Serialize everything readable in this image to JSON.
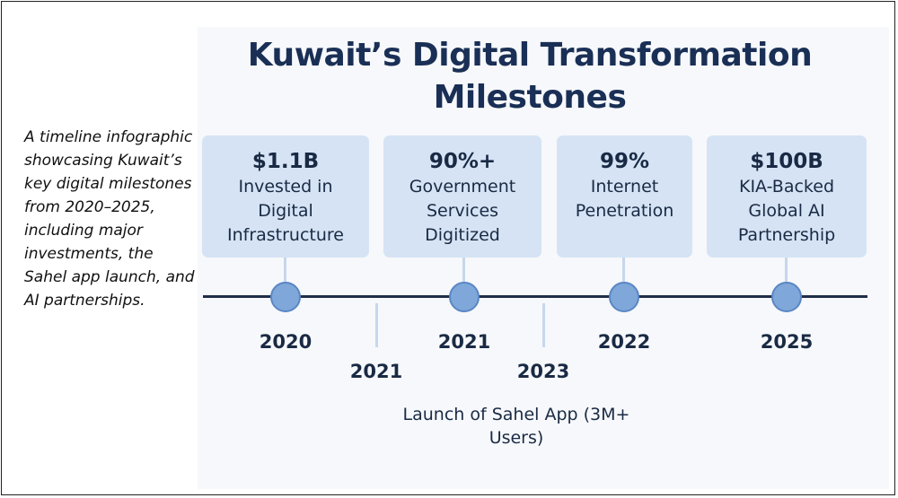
{
  "caption": "A timeline infographic showcasing Kuwait’s key digital milestones from 2020–2025, including major investments, the Sahel app launch, and AI partnerships.",
  "title": "Kuwait’s Digital Transformation Milestones",
  "colors": {
    "title": "#1a2f55",
    "card": "#d5e3f4",
    "axis": "#1f2e4a",
    "dot": "#7fa7d9"
  },
  "milestones": [
    {
      "value": "$1.1B",
      "description": "Invested in Digital Infrastructure",
      "year": "2020"
    },
    {
      "value": "90%+",
      "description": "Government Services Digitized",
      "year": "2021"
    },
    {
      "value": "99%",
      "description": "Internet Penetration",
      "year": "2022"
    },
    {
      "value": "$100B",
      "description": "KIA-Backed Global AI Partnership",
      "year": "2025"
    }
  ],
  "minor_marks": [
    {
      "year": "2021"
    },
    {
      "year": "2023"
    }
  ],
  "sahel_label": "Launch of Sahel App (3M+ Users)"
}
